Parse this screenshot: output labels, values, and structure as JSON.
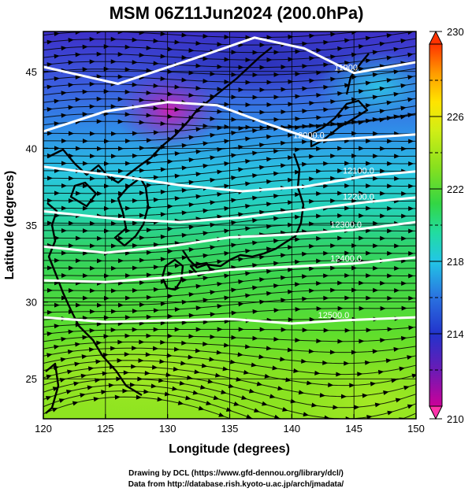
{
  "title": "MSM 06Z11Jun2024 (200.0hPa)",
  "xlabel": "Longitude (degrees)",
  "ylabel": "Latitude  (degrees)",
  "x_ticks": [
    "120",
    "125",
    "130",
    "135",
    "140",
    "145",
    "150"
  ],
  "y_ticks": [
    "25",
    "30",
    "35",
    "40",
    "45"
  ],
  "colorbar": {
    "ticks": [
      "210",
      "214",
      "218",
      "222",
      "226",
      "230"
    ],
    "min": 210,
    "max": 230,
    "colors": [
      "#cc0099",
      "#6a1bb5",
      "#2233cc",
      "#2a72e0",
      "#22c6e6",
      "#22dca0",
      "#33d644",
      "#88e01e",
      "#d0ee16",
      "#ffe400",
      "#ff9a00",
      "#ff3300"
    ]
  },
  "chart_data": {
    "type": "heatmap",
    "title": "MSM 06Z11Jun2024 (200.0hPa)",
    "xlabel": "Longitude (degrees)",
    "ylabel": "Latitude  (degrees)",
    "xlim": [
      120,
      150
    ],
    "ylim": [
      22.4,
      47.6
    ],
    "grid": true,
    "colorbar_range": [
      210,
      230
    ],
    "contours": [
      {
        "label": "11900",
        "lon": [
          120,
          126,
          132,
          137,
          141,
          145,
          150
        ],
        "lat": [
          45.3,
          44.2,
          45.8,
          47.2,
          46.5,
          44.9,
          45.6
        ]
      },
      {
        "label": "12000.0",
        "lon": [
          120,
          125,
          130,
          134,
          138,
          142,
          146,
          150
        ],
        "lat": [
          41.1,
          42.4,
          43.0,
          42.8,
          41.6,
          40.5,
          40.7,
          40.9
        ]
      },
      {
        "label": "12100.0",
        "lon": [
          120,
          126,
          131,
          136,
          141,
          146,
          150
        ],
        "lat": [
          38.8,
          38.2,
          37.6,
          37.2,
          37.5,
          38.2,
          38.5
        ]
      },
      {
        "label": "12200.0",
        "lon": [
          120,
          126,
          131,
          136,
          141,
          146,
          150
        ],
        "lat": [
          35.9,
          35.4,
          35.2,
          35.5,
          36.0,
          36.5,
          36.8
        ]
      },
      {
        "label": "12300.0",
        "lon": [
          120,
          125,
          130,
          135,
          140,
          145,
          150
        ],
        "lat": [
          33.6,
          33.2,
          33.6,
          34.2,
          34.4,
          34.7,
          35.2
        ]
      },
      {
        "label": "12400.0",
        "lon": [
          120,
          125,
          130,
          135,
          140,
          145,
          150
        ],
        "lat": [
          31.4,
          31.3,
          31.6,
          32.1,
          32.3,
          32.5,
          32.9
        ]
      },
      {
        "label": "12500.0",
        "lon": [
          120,
          125,
          130,
          135,
          140,
          144,
          150
        ],
        "lat": [
          29.0,
          28.7,
          28.8,
          28.9,
          28.6,
          28.8,
          29.0
        ]
      }
    ],
    "colorbar_ticks": [
      210,
      214,
      218,
      222,
      226,
      230
    ]
  },
  "credits": {
    "line1": "Drawing by DCL (https://www.gfd-dennou.org/library/dcl/)",
    "line2": "Data from http://database.rish.kyoto-u.ac.jp/arch/jmadata/"
  }
}
